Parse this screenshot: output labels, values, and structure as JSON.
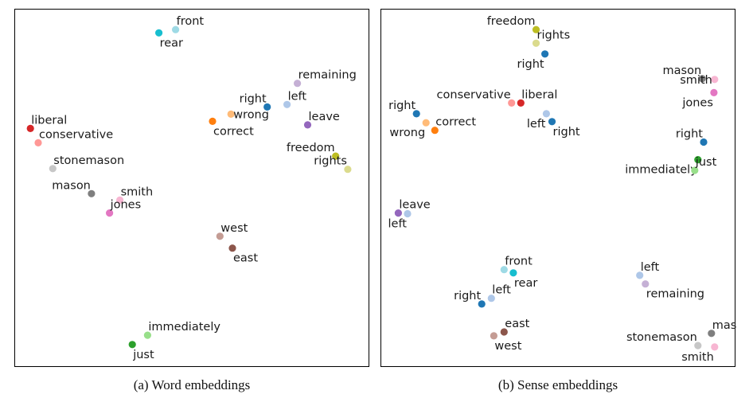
{
  "chart_data": [
    {
      "type": "scatter",
      "caption": "(a) Word embeddings",
      "xlim": [
        0,
        100
      ],
      "ylim": [
        0,
        100
      ],
      "grid": false,
      "points": [
        {
          "label": "front",
          "x": 45.2,
          "y": 94.4,
          "color": "#9edae5",
          "anchor": "ne"
        },
        {
          "label": "rear",
          "x": 40.5,
          "y": 93.5,
          "color": "#17becf",
          "anchor": "se"
        },
        {
          "label": "remaining",
          "x": 79.5,
          "y": 79.4,
          "color": "#c5b0d5",
          "anchor": "ne"
        },
        {
          "label": "right",
          "x": 71.0,
          "y": 72.8,
          "color": "#1f77b4",
          "anchor": "nw"
        },
        {
          "label": "left",
          "x": 76.6,
          "y": 73.5,
          "color": "#aec7e8",
          "anchor": "ne"
        },
        {
          "label": "wrong",
          "x": 60.8,
          "y": 70.8,
          "color": "#ffbb78",
          "anchor": "e"
        },
        {
          "label": "correct",
          "x": 55.6,
          "y": 68.8,
          "color": "#ff7f0e",
          "anchor": "se"
        },
        {
          "label": "leave",
          "x": 82.4,
          "y": 67.8,
          "color": "#9467bd",
          "anchor": "ne"
        },
        {
          "label": "liberal",
          "x": 4.3,
          "y": 66.8,
          "color": "#d62728",
          "anchor": "ne"
        },
        {
          "label": "conservative",
          "x": 6.5,
          "y": 62.8,
          "color": "#ff9896",
          "anchor": "ne"
        },
        {
          "label": "freedom",
          "x": 90.3,
          "y": 59.1,
          "color": "#bcbd22",
          "anchor": "nw"
        },
        {
          "label": "rights",
          "x": 93.7,
          "y": 55.4,
          "color": "#dbdb8d",
          "anchor": "nw"
        },
        {
          "label": "stonemason",
          "x": 10.6,
          "y": 55.6,
          "color": "#c7c7c7",
          "anchor": "ne"
        },
        {
          "label": "mason",
          "x": 21.5,
          "y": 48.6,
          "color": "#7f7f7f",
          "anchor": "nw"
        },
        {
          "label": "smith",
          "x": 29.5,
          "y": 46.8,
          "color": "#f7b6d2",
          "anchor": "ne"
        },
        {
          "label": "jones",
          "x": 26.6,
          "y": 43.2,
          "color": "#e377c2",
          "anchor": "ne"
        },
        {
          "label": "west",
          "x": 57.7,
          "y": 36.7,
          "color": "#c49c94",
          "anchor": "ne"
        },
        {
          "label": "east",
          "x": 61.2,
          "y": 33.4,
          "color": "#8c564b",
          "anchor": "se"
        },
        {
          "label": "immediately",
          "x": 37.3,
          "y": 9.1,
          "color": "#98df8a",
          "anchor": "ne"
        },
        {
          "label": "just",
          "x": 33.0,
          "y": 6.5,
          "color": "#2ca02c",
          "anchor": "se"
        }
      ]
    },
    {
      "type": "scatter",
      "caption": "(b) Sense embeddings",
      "xlim": [
        0,
        100
      ],
      "ylim": [
        0,
        100
      ],
      "grid": false,
      "points": [
        {
          "label": "freedom",
          "x": 43.6,
          "y": 94.4,
          "color": "#bcbd22",
          "anchor": "nw"
        },
        {
          "label": "rights",
          "x": 43.6,
          "y": 90.6,
          "color": "#dbdb8d",
          "anchor": "ne"
        },
        {
          "label": "right",
          "x": 46.1,
          "y": 87.6,
          "color": "#1f77b4",
          "anchor": "sw"
        },
        {
          "label": "mason",
          "x": 90.4,
          "y": 80.7,
          "color": "#7f7f7f",
          "anchor": "nw"
        },
        {
          "label": "smith",
          "x": 93.9,
          "y": 80.5,
          "color": "#f7b6d2",
          "anchor": "w"
        },
        {
          "label": "jones",
          "x": 93.7,
          "y": 76.8,
          "color": "#e377c2",
          "anchor": "sw"
        },
        {
          "label": "conservative",
          "x": 36.7,
          "y": 73.9,
          "color": "#ff9896",
          "anchor": "nw"
        },
        {
          "label": "liberal",
          "x": 39.3,
          "y": 73.9,
          "color": "#d62728",
          "anchor": "ne"
        },
        {
          "label": "right",
          "x": 9.9,
          "y": 70.9,
          "color": "#1f77b4",
          "anchor": "nw"
        },
        {
          "label": "left",
          "x": 46.5,
          "y": 70.9,
          "color": "#aec7e8",
          "anchor": "sw"
        },
        {
          "label": "right",
          "x": 48.1,
          "y": 68.7,
          "color": "#1f77b4",
          "anchor": "se"
        },
        {
          "label": "wrong",
          "x": 12.6,
          "y": 68.4,
          "color": "#ffbb78",
          "anchor": "sw"
        },
        {
          "label": "correct",
          "x": 15.1,
          "y": 66.3,
          "color": "#ff7f0e",
          "anchor": "ne"
        },
        {
          "label": "right",
          "x": 90.8,
          "y": 63.0,
          "color": "#1f77b4",
          "anchor": "nw"
        },
        {
          "label": "immediately",
          "x": 89.2,
          "y": 58.1,
          "color": "#2ca02c",
          "anchor": "sw"
        },
        {
          "label": "just",
          "x": 88.3,
          "y": 55.1,
          "color": "#98df8a",
          "anchor": "ne"
        },
        {
          "label": "leave",
          "x": 4.8,
          "y": 43.2,
          "color": "#9467bd",
          "anchor": "ne"
        },
        {
          "label": "left",
          "x": 7.4,
          "y": 43.0,
          "color": "#aec7e8",
          "anchor": "sw"
        },
        {
          "label": "front",
          "x": 34.6,
          "y": 27.4,
          "color": "#9edae5",
          "anchor": "ne"
        },
        {
          "label": "rear",
          "x": 37.2,
          "y": 26.5,
          "color": "#17becf",
          "anchor": "se"
        },
        {
          "label": "left",
          "x": 72.8,
          "y": 25.8,
          "color": "#aec7e8",
          "anchor": "ne"
        },
        {
          "label": "remaining",
          "x": 74.4,
          "y": 23.4,
          "color": "#c5b0d5",
          "anchor": "se"
        },
        {
          "label": "left",
          "x": 31.0,
          "y": 19.4,
          "color": "#aec7e8",
          "anchor": "ne"
        },
        {
          "label": "right",
          "x": 28.3,
          "y": 17.8,
          "color": "#1f77b4",
          "anchor": "nw"
        },
        {
          "label": "east",
          "x": 34.6,
          "y": 10.0,
          "color": "#8c564b",
          "anchor": "ne"
        },
        {
          "label": "west",
          "x": 31.7,
          "y": 8.9,
          "color": "#c49c94",
          "anchor": "se"
        },
        {
          "label": "mason",
          "x": 93.0,
          "y": 9.6,
          "color": "#7f7f7f",
          "anchor": "ne"
        },
        {
          "label": "stonemason",
          "x": 89.2,
          "y": 6.2,
          "color": "#c7c7c7",
          "anchor": "nw"
        },
        {
          "label": "smith",
          "x": 93.9,
          "y": 5.8,
          "color": "#f7b6d2",
          "anchor": "sw"
        }
      ]
    }
  ]
}
